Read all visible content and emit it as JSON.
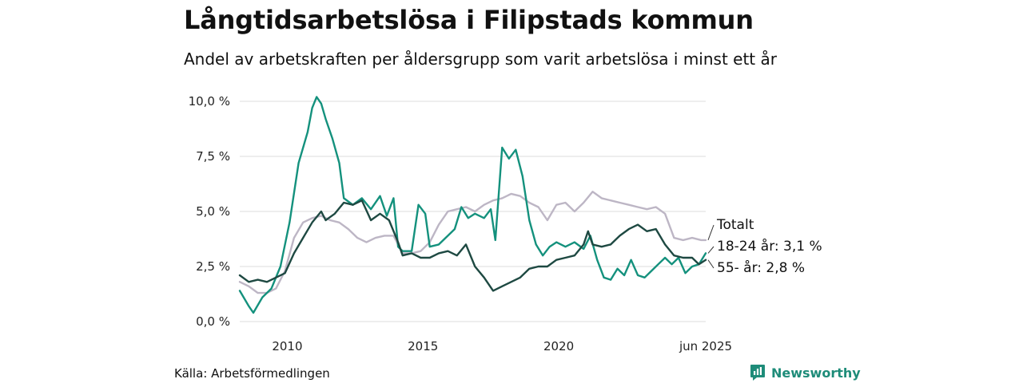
{
  "title": "Långtidsarbetslösa i Filipstads kommun",
  "subtitle": "Andel av arbetskraften per åldersgrupp som varit arbetslösa i minst ett år",
  "source": "Källa: Arbetsförmedlingen",
  "brand": {
    "name": "Newsworthy",
    "icon": "newsworthy-logo-icon",
    "color": "#1e8c79"
  },
  "colors": {
    "totalt": "#bdb6c5",
    "youth": "#14917d",
    "older": "#1e4942",
    "grid": "#dddddd"
  },
  "chart_data": {
    "type": "line",
    "title": "Långtidsarbetslösa i Filipstads kommun",
    "subtitle": "Andel av arbetskraften per åldersgrupp som varit arbetslösa i minst ett år",
    "xlabel": "",
    "ylabel": "",
    "xlim": [
      "2008-04",
      "2025-06"
    ],
    "ylim": [
      0,
      10
    ],
    "y_ticks": [
      0,
      2.5,
      5,
      7.5,
      10
    ],
    "y_tick_labels": [
      "0,0 %",
      "2,5 %",
      "5,0 %",
      "7,5 %",
      "10,0 %"
    ],
    "x_ticks": [
      "2010-01",
      "2015-01",
      "2020-01",
      "2025-06"
    ],
    "x_tick_labels": [
      "2010",
      "2015",
      "2020",
      "jun 2025"
    ],
    "grid": true,
    "legend": "end-of-line labels",
    "series": [
      {
        "name": "Totalt",
        "label": "Totalt",
        "color": "#bdb6c5",
        "points": [
          [
            "2008-04",
            1.8
          ],
          [
            "2008-08",
            1.6
          ],
          [
            "2008-12",
            1.3
          ],
          [
            "2009-04",
            1.3
          ],
          [
            "2009-08",
            1.5
          ],
          [
            "2009-12",
            2.3
          ],
          [
            "2010-04",
            3.8
          ],
          [
            "2010-08",
            4.5
          ],
          [
            "2010-12",
            4.7
          ],
          [
            "2011-04",
            4.8
          ],
          [
            "2011-08",
            4.6
          ],
          [
            "2011-12",
            4.5
          ],
          [
            "2012-04",
            4.2
          ],
          [
            "2012-08",
            3.8
          ],
          [
            "2012-12",
            3.6
          ],
          [
            "2013-04",
            3.8
          ],
          [
            "2013-08",
            3.9
          ],
          [
            "2013-12",
            3.9
          ],
          [
            "2014-04",
            3.1
          ],
          [
            "2014-08",
            3.1
          ],
          [
            "2014-12",
            3.2
          ],
          [
            "2015-04",
            3.6
          ],
          [
            "2015-08",
            4.4
          ],
          [
            "2015-12",
            5.0
          ],
          [
            "2016-04",
            5.1
          ],
          [
            "2016-08",
            5.2
          ],
          [
            "2016-12",
            5.0
          ],
          [
            "2017-04",
            5.3
          ],
          [
            "2017-08",
            5.5
          ],
          [
            "2017-12",
            5.6
          ],
          [
            "2018-04",
            5.8
          ],
          [
            "2018-08",
            5.7
          ],
          [
            "2018-12",
            5.4
          ],
          [
            "2019-04",
            5.2
          ],
          [
            "2019-08",
            4.6
          ],
          [
            "2019-12",
            5.3
          ],
          [
            "2020-04",
            5.4
          ],
          [
            "2020-08",
            5.0
          ],
          [
            "2020-12",
            5.4
          ],
          [
            "2021-04",
            5.9
          ],
          [
            "2021-08",
            5.6
          ],
          [
            "2021-12",
            5.5
          ],
          [
            "2022-04",
            5.4
          ],
          [
            "2022-08",
            5.3
          ],
          [
            "2022-12",
            5.2
          ],
          [
            "2023-04",
            5.1
          ],
          [
            "2023-08",
            5.2
          ],
          [
            "2023-12",
            4.9
          ],
          [
            "2024-04",
            3.8
          ],
          [
            "2024-08",
            3.7
          ],
          [
            "2024-12",
            3.8
          ],
          [
            "2025-04",
            3.7
          ],
          [
            "2025-06",
            3.7
          ]
        ]
      },
      {
        "name": "18-24 år",
        "label": "18-24 år: 3,1 %",
        "color": "#14917d",
        "points": [
          [
            "2008-04",
            1.4
          ],
          [
            "2008-08",
            0.7
          ],
          [
            "2008-10",
            0.4
          ],
          [
            "2009-02",
            1.1
          ],
          [
            "2009-06",
            1.5
          ],
          [
            "2009-10",
            2.5
          ],
          [
            "2010-02",
            4.5
          ],
          [
            "2010-06",
            7.2
          ],
          [
            "2010-10",
            8.6
          ],
          [
            "2010-12",
            9.7
          ],
          [
            "2011-02",
            10.2
          ],
          [
            "2011-04",
            9.9
          ],
          [
            "2011-06",
            9.2
          ],
          [
            "2011-09",
            8.3
          ],
          [
            "2011-12",
            7.2
          ],
          [
            "2012-02",
            5.6
          ],
          [
            "2012-06",
            5.3
          ],
          [
            "2012-10",
            5.6
          ],
          [
            "2013-02",
            5.1
          ],
          [
            "2013-06",
            5.7
          ],
          [
            "2013-09",
            4.8
          ],
          [
            "2013-12",
            5.6
          ],
          [
            "2014-02",
            3.4
          ],
          [
            "2014-04",
            3.2
          ],
          [
            "2014-08",
            3.2
          ],
          [
            "2014-11",
            5.3
          ],
          [
            "2015-02",
            4.9
          ],
          [
            "2015-04",
            3.4
          ],
          [
            "2015-08",
            3.5
          ],
          [
            "2015-12",
            3.9
          ],
          [
            "2016-03",
            4.2
          ],
          [
            "2016-06",
            5.2
          ],
          [
            "2016-09",
            4.7
          ],
          [
            "2016-12",
            4.9
          ],
          [
            "2017-04",
            4.7
          ],
          [
            "2017-07",
            5.1
          ],
          [
            "2017-09",
            3.7
          ],
          [
            "2017-12",
            7.9
          ],
          [
            "2018-03",
            7.4
          ],
          [
            "2018-06",
            7.8
          ],
          [
            "2018-09",
            6.6
          ],
          [
            "2018-12",
            4.6
          ],
          [
            "2019-03",
            3.5
          ],
          [
            "2019-06",
            3.0
          ],
          [
            "2019-09",
            3.4
          ],
          [
            "2019-12",
            3.6
          ],
          [
            "2020-04",
            3.4
          ],
          [
            "2020-08",
            3.6
          ],
          [
            "2020-12",
            3.3
          ],
          [
            "2021-03",
            3.9
          ],
          [
            "2021-06",
            2.8
          ],
          [
            "2021-09",
            2.0
          ],
          [
            "2021-12",
            1.9
          ],
          [
            "2022-03",
            2.4
          ],
          [
            "2022-06",
            2.1
          ],
          [
            "2022-09",
            2.8
          ],
          [
            "2022-12",
            2.1
          ],
          [
            "2023-03",
            2.0
          ],
          [
            "2023-06",
            2.3
          ],
          [
            "2023-09",
            2.6
          ],
          [
            "2023-12",
            2.9
          ],
          [
            "2024-03",
            2.6
          ],
          [
            "2024-06",
            2.9
          ],
          [
            "2024-09",
            2.2
          ],
          [
            "2024-12",
            2.5
          ],
          [
            "2025-03",
            2.6
          ],
          [
            "2025-06",
            3.1
          ]
        ]
      },
      {
        "name": "55- år",
        "label": "55- år: 2,8 %",
        "color": "#1e4942",
        "points": [
          [
            "2008-04",
            2.1
          ],
          [
            "2008-08",
            1.8
          ],
          [
            "2008-12",
            1.9
          ],
          [
            "2009-04",
            1.8
          ],
          [
            "2009-08",
            2.0
          ],
          [
            "2009-12",
            2.2
          ],
          [
            "2010-04",
            3.1
          ],
          [
            "2010-08",
            3.8
          ],
          [
            "2010-12",
            4.5
          ],
          [
            "2011-04",
            5.0
          ],
          [
            "2011-06",
            4.6
          ],
          [
            "2011-10",
            4.9
          ],
          [
            "2012-02",
            5.4
          ],
          [
            "2012-06",
            5.3
          ],
          [
            "2012-10",
            5.5
          ],
          [
            "2013-02",
            4.6
          ],
          [
            "2013-06",
            4.9
          ],
          [
            "2013-10",
            4.6
          ],
          [
            "2014-02",
            3.6
          ],
          [
            "2014-04",
            3.0
          ],
          [
            "2014-08",
            3.1
          ],
          [
            "2014-12",
            2.9
          ],
          [
            "2015-04",
            2.9
          ],
          [
            "2015-08",
            3.1
          ],
          [
            "2015-12",
            3.2
          ],
          [
            "2016-04",
            3.0
          ],
          [
            "2016-08",
            3.5
          ],
          [
            "2016-12",
            2.5
          ],
          [
            "2017-04",
            2.0
          ],
          [
            "2017-08",
            1.4
          ],
          [
            "2017-12",
            1.6
          ],
          [
            "2018-04",
            1.8
          ],
          [
            "2018-08",
            2.0
          ],
          [
            "2018-12",
            2.4
          ],
          [
            "2019-04",
            2.5
          ],
          [
            "2019-08",
            2.5
          ],
          [
            "2019-12",
            2.8
          ],
          [
            "2020-04",
            2.9
          ],
          [
            "2020-08",
            3.0
          ],
          [
            "2020-12",
            3.5
          ],
          [
            "2021-02",
            4.1
          ],
          [
            "2021-04",
            3.5
          ],
          [
            "2021-08",
            3.4
          ],
          [
            "2021-12",
            3.5
          ],
          [
            "2022-04",
            3.9
          ],
          [
            "2022-08",
            4.2
          ],
          [
            "2022-12",
            4.4
          ],
          [
            "2023-04",
            4.1
          ],
          [
            "2023-08",
            4.2
          ],
          [
            "2023-12",
            3.5
          ],
          [
            "2024-04",
            3.0
          ],
          [
            "2024-08",
            2.9
          ],
          [
            "2024-12",
            2.9
          ],
          [
            "2025-03",
            2.6
          ],
          [
            "2025-06",
            2.8
          ]
        ]
      }
    ]
  }
}
